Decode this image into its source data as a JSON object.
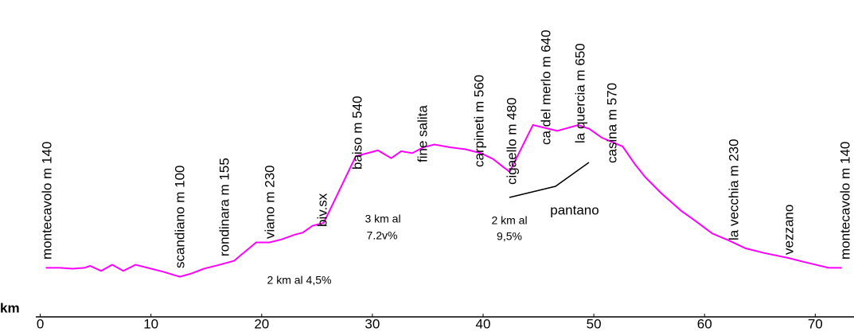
{
  "chart_data": {
    "type": "line",
    "x_label": "km",
    "xlim": [
      -0.4,
      73.5
    ],
    "xticks": [
      0,
      10,
      20,
      30,
      40,
      50,
      60,
      70
    ],
    "ylim": [
      -90,
      1100
    ],
    "series": [
      {
        "color": "#ff00ff",
        "x": [
          0.5,
          1.8,
          2.9,
          4.0,
          4.5,
          5.5,
          6.5,
          7.5,
          8.6,
          9.7,
          11.1,
          12.6,
          13.6,
          14.8,
          16.2,
          17.5,
          19.5,
          20.7,
          21.8,
          23.0,
          23.7,
          24.6,
          25.6,
          28.5,
          30.5,
          31.7,
          32.6,
          33.6,
          34.6,
          35.6,
          37.0,
          38.4,
          39.8,
          40.9,
          41.8,
          42.4,
          44.5,
          46.7,
          48.6,
          49.6,
          50.7,
          52.6,
          53.7,
          54.6,
          56.1,
          57.9,
          58.9,
          60.7,
          62.2,
          63.7,
          65.4,
          67.6,
          69.0,
          71.2,
          72.4
        ],
        "values": [
          140,
          140,
          137,
          140,
          147,
          129,
          151,
          129,
          151,
          140,
          126,
          108,
          119,
          137,
          151,
          165,
          231,
          231,
          242,
          259,
          266,
          291,
          301,
          540,
          561,
          533,
          558,
          551,
          572,
          582,
          572,
          565,
          551,
          530,
          502,
          484,
          652,
          631,
          652,
          638,
          607,
          575,
          512,
          467,
          407,
          344,
          316,
          263,
          238,
          210,
          193,
          175,
          161,
          140,
          140
        ]
      }
    ],
    "place_labels": [
      "montecavolo m 140",
      "scandiano  m 100",
      "rondinara m 155",
      "viano m 230",
      "biv.sx",
      "baiso m 540",
      "fine salita",
      "carpineti m 560",
      "cigaello m 480",
      "ca del merlo m 640",
      "la quercia m 650",
      "casina m 570",
      "la vecchia m 230",
      "vezzano",
      "montecavolo m 140"
    ],
    "annotations": [
      "2 km al 4,5%",
      "3 km al",
      "7.2v%",
      "2  km al",
      "9,5%",
      "pantano"
    ]
  }
}
